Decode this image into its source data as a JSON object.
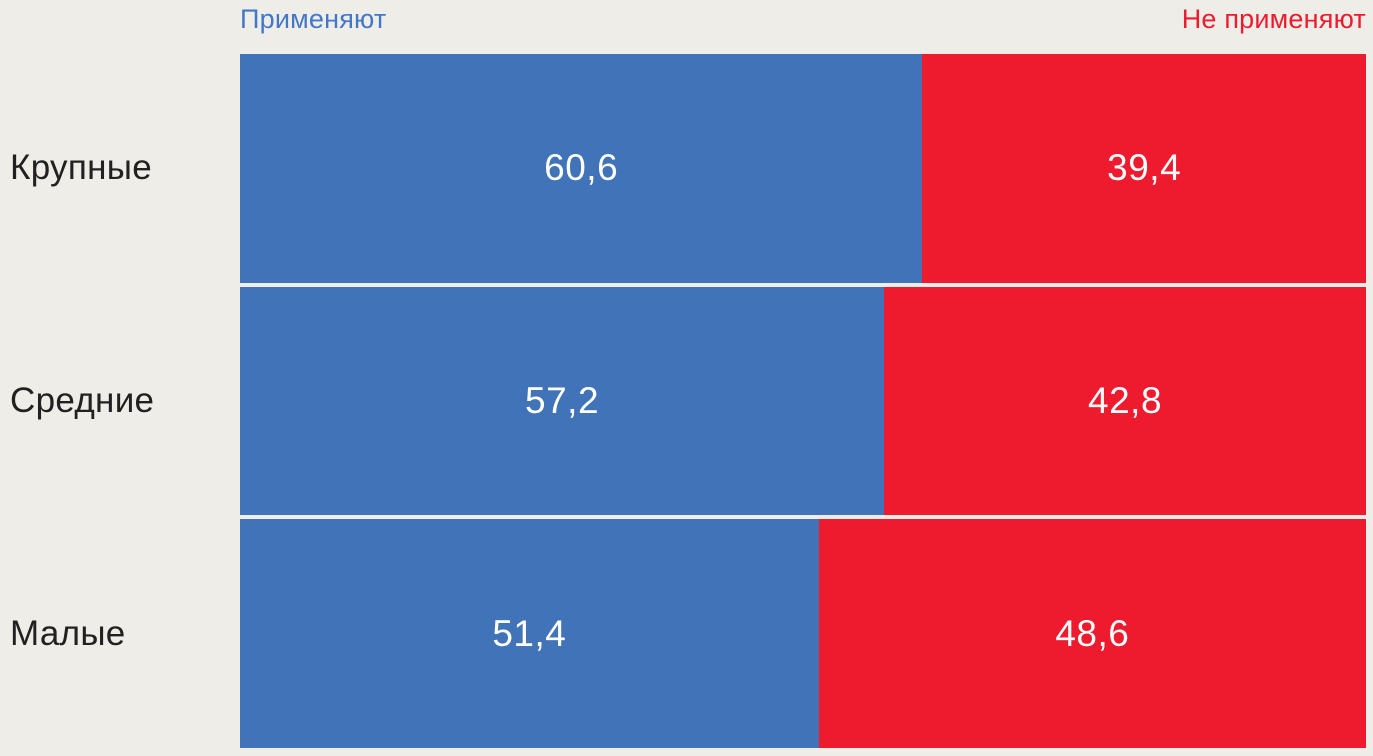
{
  "chart_data": {
    "type": "bar",
    "orientation": "horizontal-stacked",
    "title": "",
    "categories": [
      "Крупные",
      "Средние",
      "Малые"
    ],
    "series": [
      {
        "name": "Применяют",
        "color": "#4173B8",
        "values": [
          60.6,
          57.2,
          51.4
        ]
      },
      {
        "name": "Не применяют",
        "color": "#ED1B2D",
        "values": [
          39.4,
          42.8,
          48.6
        ]
      }
    ],
    "xlim": [
      0,
      100
    ],
    "value_label_format": "comma-decimal",
    "legend_position": "top",
    "grid": false,
    "background": "#EEEDE8"
  },
  "legend": {
    "apply_label": "Применяют",
    "not_apply_label": "Не применяют"
  },
  "rows": [
    {
      "category": "Крупные",
      "apply_label": "60,6",
      "apply_pct": 60.6,
      "not_apply_label": "39,4",
      "not_apply_pct": 39.4
    },
    {
      "category": "Средние",
      "apply_label": "57,2",
      "apply_pct": 57.2,
      "not_apply_label": "42,8",
      "not_apply_pct": 42.8
    },
    {
      "category": "Малые",
      "apply_label": "51,4",
      "apply_pct": 51.4,
      "not_apply_label": "48,6",
      "not_apply_pct": 48.6
    }
  ],
  "colors": {
    "apply": "#4173B8",
    "not_apply": "#ED1B2D",
    "background": "#EEEDE8",
    "category_text": "#212121",
    "value_text": "#FFFFFF",
    "legend_apply_text": "#4377C8",
    "legend_not_apply_text": "#ED1B2D"
  }
}
